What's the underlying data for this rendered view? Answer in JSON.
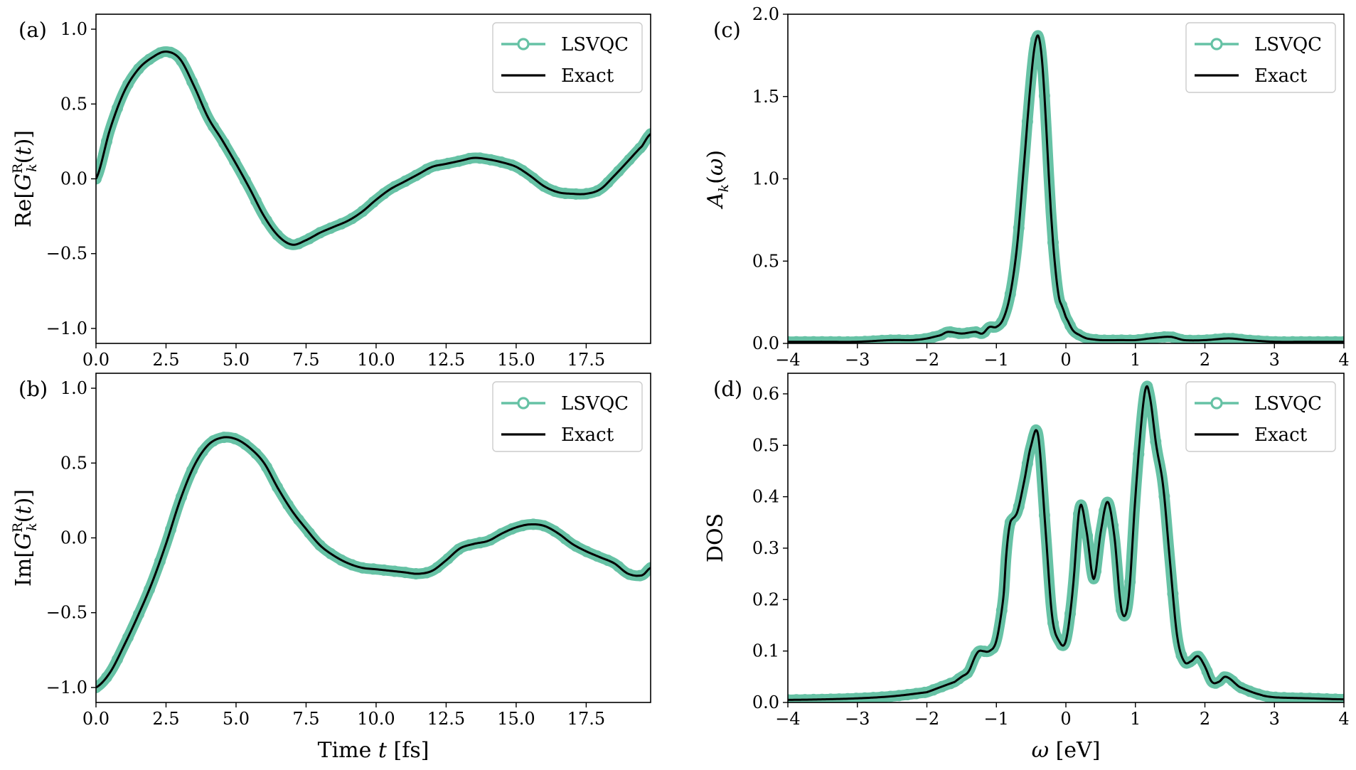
{
  "colors": {
    "lsvqc": "#66c2a5",
    "exact": "#000000",
    "legend_border": "#cccccc"
  },
  "legend": {
    "lsvqc": "LSVQC",
    "exact": "Exact"
  },
  "chart_data": [
    {
      "id": "a",
      "panel_label": "(a)",
      "type": "line",
      "title": "",
      "xlabel": "",
      "ylabel": "Re[G_k^R(t)]",
      "xlim": [
        0,
        19.8
      ],
      "ylim": [
        -1.1,
        1.1
      ],
      "xticks": [
        0,
        2.5,
        5,
        7.5,
        10,
        12.5,
        15,
        17.5
      ],
      "xtick_labels": [
        "0.0",
        "2.5",
        "5.0",
        "7.5",
        "10.0",
        "12.5",
        "15.0",
        "17.5"
      ],
      "yticks": [
        1.0,
        0.5,
        0.0,
        -0.5,
        -1.0
      ],
      "ytick_labels": [
        "1.0",
        "0.5",
        "0.0",
        "−0.5",
        "−1.0"
      ],
      "legend_position": "top-right",
      "series": [
        {
          "name": "LSVQC",
          "x": [
            0,
            0.5,
            1,
            1.5,
            2,
            2.5,
            3,
            3.5,
            4,
            4.5,
            5,
            5.5,
            6,
            6.5,
            7,
            7.5,
            8,
            8.5,
            9,
            9.5,
            10,
            10.5,
            11,
            11.5,
            12,
            12.5,
            13,
            13.5,
            14,
            14.5,
            15,
            15.5,
            16,
            16.5,
            17,
            17.5,
            18,
            18.5,
            19,
            19.5,
            19.8
          ],
          "y": [
            0.0,
            0.33,
            0.58,
            0.73,
            0.81,
            0.85,
            0.8,
            0.62,
            0.41,
            0.26,
            0.1,
            -0.07,
            -0.25,
            -0.38,
            -0.44,
            -0.41,
            -0.36,
            -0.32,
            -0.28,
            -0.22,
            -0.14,
            -0.07,
            -0.02,
            0.03,
            0.08,
            0.1,
            0.12,
            0.14,
            0.13,
            0.11,
            0.08,
            0.02,
            -0.05,
            -0.09,
            -0.1,
            -0.1,
            -0.07,
            0.02,
            0.12,
            0.22,
            0.3
          ]
        },
        {
          "name": "Exact",
          "x": [
            0,
            0.5,
            1,
            1.5,
            2,
            2.5,
            3,
            3.5,
            4,
            4.5,
            5,
            5.5,
            6,
            6.5,
            7,
            7.5,
            8,
            8.5,
            9,
            9.5,
            10,
            10.5,
            11,
            11.5,
            12,
            12.5,
            13,
            13.5,
            14,
            14.5,
            15,
            15.5,
            16,
            16.5,
            17,
            17.5,
            18,
            18.5,
            19,
            19.5,
            19.8
          ],
          "y": [
            0.0,
            0.33,
            0.58,
            0.73,
            0.81,
            0.85,
            0.8,
            0.62,
            0.41,
            0.26,
            0.1,
            -0.07,
            -0.25,
            -0.38,
            -0.44,
            -0.41,
            -0.36,
            -0.32,
            -0.28,
            -0.22,
            -0.14,
            -0.07,
            -0.02,
            0.03,
            0.08,
            0.1,
            0.12,
            0.14,
            0.13,
            0.11,
            0.08,
            0.02,
            -0.05,
            -0.09,
            -0.1,
            -0.1,
            -0.07,
            0.02,
            0.12,
            0.22,
            0.3
          ]
        }
      ]
    },
    {
      "id": "b",
      "panel_label": "(b)",
      "type": "line",
      "title": "",
      "xlabel": "Time t [fs]",
      "ylabel": "Im[G_k^R(t)]",
      "xlim": [
        0,
        19.8
      ],
      "ylim": [
        -1.1,
        1.1
      ],
      "xticks": [
        0,
        2.5,
        5,
        7.5,
        10,
        12.5,
        15,
        17.5
      ],
      "xtick_labels": [
        "0.0",
        "2.5",
        "5.0",
        "7.5",
        "10.0",
        "12.5",
        "15.0",
        "17.5"
      ],
      "yticks": [
        1.0,
        0.5,
        0.0,
        -0.5,
        -1.0
      ],
      "ytick_labels": [
        "1.0",
        "0.5",
        "0.0",
        "−0.5",
        "−1.0"
      ],
      "legend_position": "top-right",
      "series": [
        {
          "name": "LSVQC",
          "x": [
            0,
            0.5,
            1,
            1.5,
            2,
            2.5,
            3,
            3.5,
            4,
            4.5,
            5,
            5.5,
            6,
            6.5,
            7,
            7.5,
            8,
            8.5,
            9,
            9.5,
            10,
            10.5,
            11,
            11.5,
            12,
            12.5,
            13,
            13.5,
            14,
            14.5,
            15,
            15.5,
            16,
            16.5,
            17,
            17.5,
            18,
            18.5,
            19,
            19.5,
            19.8
          ],
          "y": [
            -1.0,
            -0.9,
            -0.72,
            -0.52,
            -0.3,
            -0.04,
            0.25,
            0.48,
            0.62,
            0.67,
            0.66,
            0.6,
            0.5,
            0.33,
            0.18,
            0.06,
            -0.05,
            -0.12,
            -0.17,
            -0.2,
            -0.21,
            -0.22,
            -0.23,
            -0.24,
            -0.22,
            -0.15,
            -0.07,
            -0.04,
            -0.02,
            0.03,
            0.07,
            0.09,
            0.08,
            0.03,
            -0.04,
            -0.09,
            -0.13,
            -0.17,
            -0.24,
            -0.25,
            -0.2
          ]
        },
        {
          "name": "Exact",
          "x": [
            0,
            0.5,
            1,
            1.5,
            2,
            2.5,
            3,
            3.5,
            4,
            4.5,
            5,
            5.5,
            6,
            6.5,
            7,
            7.5,
            8,
            8.5,
            9,
            9.5,
            10,
            10.5,
            11,
            11.5,
            12,
            12.5,
            13,
            13.5,
            14,
            14.5,
            15,
            15.5,
            16,
            16.5,
            17,
            17.5,
            18,
            18.5,
            19,
            19.5,
            19.8
          ],
          "y": [
            -1.0,
            -0.9,
            -0.72,
            -0.52,
            -0.3,
            -0.04,
            0.25,
            0.48,
            0.62,
            0.67,
            0.66,
            0.6,
            0.5,
            0.33,
            0.18,
            0.06,
            -0.05,
            -0.12,
            -0.17,
            -0.2,
            -0.21,
            -0.22,
            -0.23,
            -0.24,
            -0.22,
            -0.15,
            -0.07,
            -0.04,
            -0.02,
            0.03,
            0.07,
            0.09,
            0.08,
            0.03,
            -0.04,
            -0.09,
            -0.13,
            -0.17,
            -0.24,
            -0.25,
            -0.2
          ]
        }
      ]
    },
    {
      "id": "c",
      "panel_label": "(c)",
      "type": "line",
      "title": "",
      "xlabel": "",
      "ylabel": "A_k(ω)",
      "xlim": [
        -4,
        4
      ],
      "ylim": [
        0,
        2.0
      ],
      "xticks": [
        -4,
        -3,
        -2,
        -1,
        0,
        1,
        2,
        3,
        4
      ],
      "xtick_labels": [
        "−4",
        "−3",
        "−2",
        "−1",
        "0",
        "1",
        "2",
        "3",
        "4"
      ],
      "yticks": [
        0,
        0.5,
        1.0,
        1.5,
        2.0
      ],
      "ytick_labels": [
        "0.0",
        "0.5",
        "1.0",
        "1.5",
        "2.0"
      ],
      "legend_position": "top-right",
      "series": [
        {
          "name": "LSVQC",
          "x": [
            -4,
            -3.5,
            -3,
            -2.5,
            -2.2,
            -2,
            -1.8,
            -1.7,
            -1.5,
            -1.3,
            -1.2,
            -1.1,
            -1.0,
            -0.9,
            -0.8,
            -0.7,
            -0.6,
            -0.5,
            -0.45,
            -0.4,
            -0.35,
            -0.3,
            -0.25,
            -0.2,
            -0.15,
            -0.1,
            -0.05,
            0.0,
            0.1,
            0.2,
            0.3,
            0.5,
            0.8,
            1.0,
            1.2,
            1.5,
            1.7,
            2.0,
            2.35,
            2.6,
            3.0,
            3.5,
            4.0
          ],
          "y": [
            0.01,
            0.01,
            0.01,
            0.02,
            0.02,
            0.03,
            0.05,
            0.07,
            0.06,
            0.07,
            0.06,
            0.1,
            0.1,
            0.15,
            0.3,
            0.6,
            1.1,
            1.6,
            1.8,
            1.87,
            1.75,
            1.45,
            1.05,
            0.7,
            0.45,
            0.28,
            0.22,
            0.16,
            0.08,
            0.05,
            0.03,
            0.02,
            0.02,
            0.02,
            0.03,
            0.04,
            0.02,
            0.02,
            0.03,
            0.02,
            0.01,
            0.01,
            0.01
          ]
        },
        {
          "name": "Exact",
          "x": [
            -4,
            -3.5,
            -3,
            -2.5,
            -2.2,
            -2,
            -1.8,
            -1.7,
            -1.5,
            -1.3,
            -1.2,
            -1.1,
            -1.0,
            -0.9,
            -0.8,
            -0.7,
            -0.6,
            -0.5,
            -0.45,
            -0.4,
            -0.35,
            -0.3,
            -0.25,
            -0.2,
            -0.15,
            -0.1,
            -0.05,
            0.0,
            0.1,
            0.2,
            0.3,
            0.5,
            0.8,
            1.0,
            1.2,
            1.5,
            1.7,
            2.0,
            2.35,
            2.6,
            3.0,
            3.5,
            4.0
          ],
          "y": [
            0.01,
            0.01,
            0.01,
            0.02,
            0.02,
            0.03,
            0.05,
            0.07,
            0.06,
            0.07,
            0.06,
            0.1,
            0.1,
            0.15,
            0.3,
            0.6,
            1.1,
            1.6,
            1.8,
            1.87,
            1.75,
            1.45,
            1.05,
            0.7,
            0.45,
            0.28,
            0.22,
            0.16,
            0.08,
            0.05,
            0.03,
            0.02,
            0.02,
            0.02,
            0.03,
            0.04,
            0.02,
            0.02,
            0.03,
            0.02,
            0.01,
            0.01,
            0.01
          ]
        }
      ]
    },
    {
      "id": "d",
      "panel_label": "(d)",
      "type": "line",
      "title": "",
      "xlabel": "ω [eV]",
      "ylabel": "DOS",
      "xlim": [
        -4,
        4
      ],
      "ylim": [
        0,
        0.64
      ],
      "xticks": [
        -4,
        -3,
        -2,
        -1,
        0,
        1,
        2,
        3,
        4
      ],
      "xtick_labels": [
        "−4",
        "−3",
        "−2",
        "−1",
        "0",
        "1",
        "2",
        "3",
        "4"
      ],
      "yticks": [
        0,
        0.1,
        0.2,
        0.3,
        0.4,
        0.5,
        0.6
      ],
      "ytick_labels": [
        "0.0",
        "0.1",
        "0.2",
        "0.3",
        "0.4",
        "0.5",
        "0.6"
      ],
      "legend_position": "top-right",
      "series": [
        {
          "name": "LSVQC",
          "x": [
            -4,
            -3.5,
            -3,
            -2.5,
            -2,
            -1.8,
            -1.6,
            -1.5,
            -1.4,
            -1.3,
            -1.25,
            -1.2,
            -1.1,
            -1.0,
            -0.9,
            -0.85,
            -0.8,
            -0.7,
            -0.6,
            -0.5,
            -0.4,
            -0.3,
            -0.2,
            -0.1,
            0.0,
            0.1,
            0.2,
            0.3,
            0.4,
            0.5,
            0.6,
            0.7,
            0.8,
            0.9,
            1.0,
            1.1,
            1.15,
            1.2,
            1.3,
            1.4,
            1.5,
            1.6,
            1.7,
            1.8,
            1.9,
            2.0,
            2.1,
            2.2,
            2.3,
            2.5,
            2.8,
            3.0,
            3.5,
            4.0
          ],
          "y": [
            0.005,
            0.006,
            0.008,
            0.012,
            0.02,
            0.03,
            0.04,
            0.05,
            0.06,
            0.09,
            0.1,
            0.1,
            0.1,
            0.12,
            0.2,
            0.3,
            0.35,
            0.37,
            0.43,
            0.5,
            0.52,
            0.35,
            0.17,
            0.12,
            0.12,
            0.22,
            0.38,
            0.33,
            0.24,
            0.33,
            0.39,
            0.32,
            0.18,
            0.2,
            0.4,
            0.56,
            0.61,
            0.6,
            0.5,
            0.42,
            0.27,
            0.13,
            0.08,
            0.08,
            0.09,
            0.07,
            0.04,
            0.04,
            0.05,
            0.03,
            0.015,
            0.01,
            0.008,
            0.006
          ]
        },
        {
          "name": "Exact",
          "x": [
            -4,
            -3.5,
            -3,
            -2.5,
            -2,
            -1.8,
            -1.6,
            -1.5,
            -1.4,
            -1.3,
            -1.25,
            -1.2,
            -1.1,
            -1.0,
            -0.9,
            -0.85,
            -0.8,
            -0.7,
            -0.6,
            -0.5,
            -0.4,
            -0.3,
            -0.2,
            -0.1,
            0.0,
            0.1,
            0.2,
            0.3,
            0.4,
            0.5,
            0.6,
            0.7,
            0.8,
            0.9,
            1.0,
            1.1,
            1.15,
            1.2,
            1.3,
            1.4,
            1.5,
            1.6,
            1.7,
            1.8,
            1.9,
            2.0,
            2.1,
            2.2,
            2.3,
            2.5,
            2.8,
            3.0,
            3.5,
            4.0
          ],
          "y": [
            0.005,
            0.006,
            0.008,
            0.012,
            0.02,
            0.03,
            0.04,
            0.05,
            0.06,
            0.09,
            0.1,
            0.1,
            0.1,
            0.12,
            0.2,
            0.3,
            0.35,
            0.37,
            0.43,
            0.5,
            0.52,
            0.35,
            0.17,
            0.12,
            0.12,
            0.22,
            0.38,
            0.33,
            0.24,
            0.33,
            0.39,
            0.32,
            0.18,
            0.2,
            0.4,
            0.56,
            0.61,
            0.6,
            0.5,
            0.42,
            0.27,
            0.13,
            0.08,
            0.08,
            0.09,
            0.07,
            0.04,
            0.04,
            0.05,
            0.03,
            0.015,
            0.01,
            0.008,
            0.006
          ]
        }
      ]
    }
  ]
}
